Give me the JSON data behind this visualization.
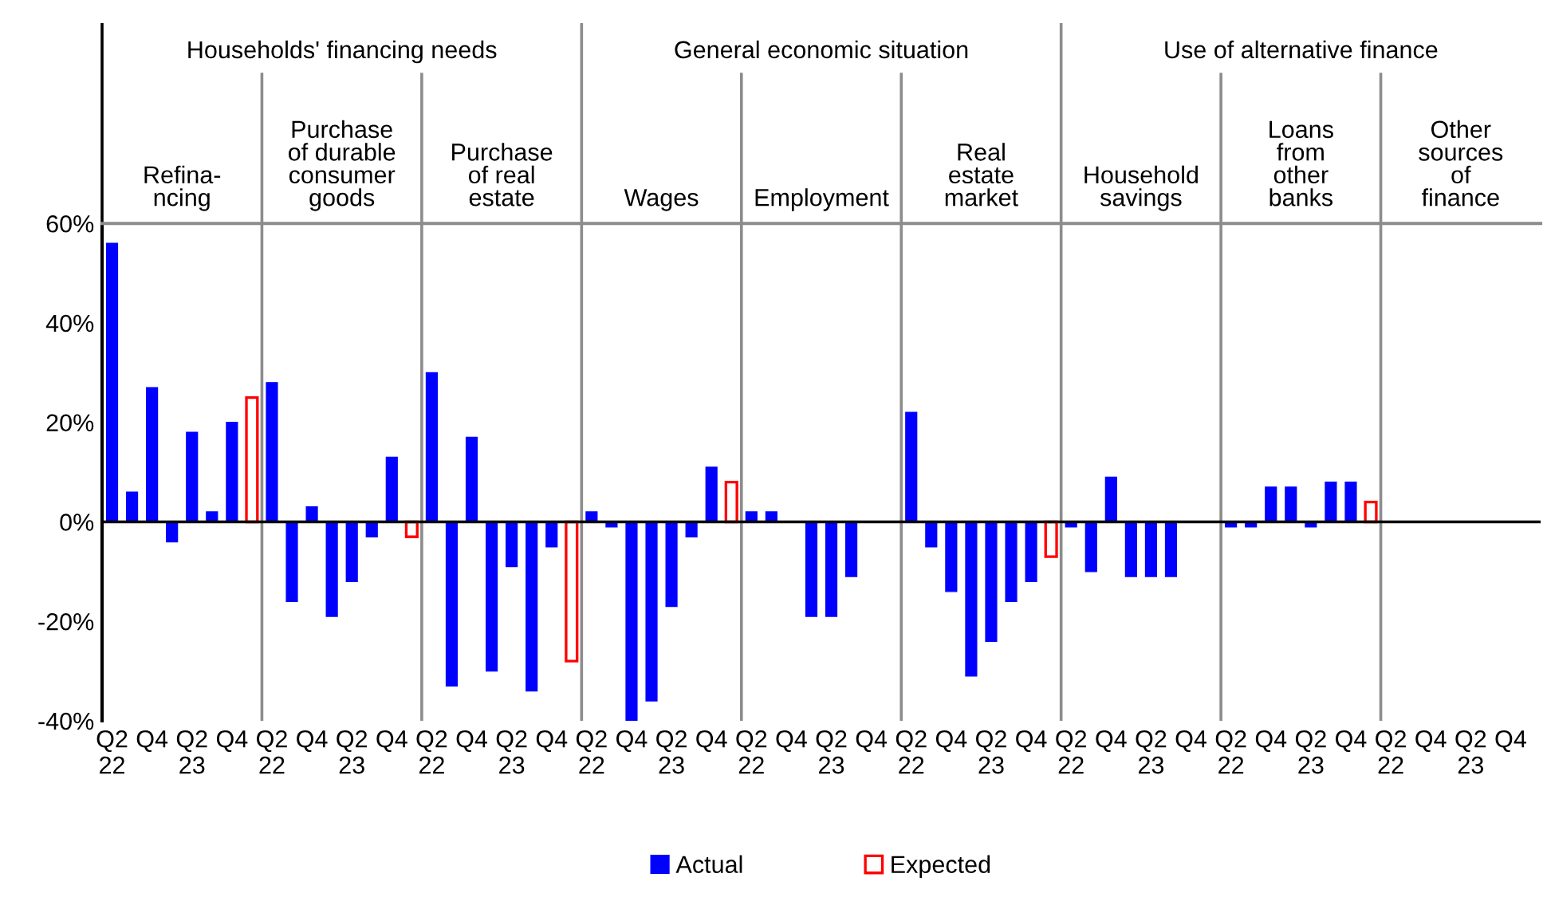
{
  "chart_data": {
    "type": "bar",
    "categories": [
      "Q2\n22",
      null,
      "Q4",
      null,
      "Q2\n23",
      null,
      "Q4",
      null,
      "Q2\n22",
      null,
      "Q4",
      null,
      "Q2\n23",
      null,
      "Q4",
      null,
      "Q2\n22",
      null,
      "Q4",
      null,
      "Q2\n23",
      null,
      "Q4",
      null,
      "Q2\n22",
      null,
      "Q4",
      null,
      "Q2\n23",
      null,
      "Q4",
      null,
      "Q2\n22",
      null,
      "Q4",
      null,
      "Q2\n23",
      null,
      "Q4",
      null,
      "Q2\n22",
      null,
      "Q4",
      null,
      "Q2\n23",
      null,
      "Q4",
      null,
      "Q2\n22",
      null,
      "Q4",
      null,
      "Q2\n23",
      null,
      "Q4",
      null,
      "Q2\n22",
      null,
      "Q4",
      null,
      "Q2\n23",
      null,
      "Q4",
      null,
      "Q2\n22",
      null,
      "Q4",
      null,
      "Q2\n23",
      null,
      "Q4",
      null
    ],
    "series": [
      {
        "name": "Actual",
        "color": "#0000ff",
        "values": [
          56,
          6,
          27,
          -4,
          18,
          2,
          20,
          null,
          28,
          -16,
          3,
          -19,
          -12,
          -3,
          13,
          null,
          30,
          -33,
          17,
          -30,
          -9,
          -34,
          -5,
          null,
          2,
          -1,
          -40,
          -36,
          -17,
          -3,
          11,
          null,
          2,
          2,
          null,
          -19,
          -19,
          -11,
          null,
          null,
          22,
          -5,
          -14,
          -31,
          -24,
          -16,
          -12,
          null,
          -1,
          -10,
          9,
          -11,
          -11,
          -11,
          null,
          null,
          -1,
          -1,
          7,
          7,
          -1,
          8,
          8,
          null,
          null,
          null,
          null,
          null,
          null,
          null,
          null,
          null
        ]
      },
      {
        "name": "Expected",
        "color": "#ff0000",
        "values": [
          null,
          null,
          null,
          null,
          null,
          null,
          null,
          25,
          null,
          null,
          null,
          null,
          null,
          null,
          null,
          -3,
          null,
          null,
          null,
          null,
          null,
          null,
          null,
          -28,
          null,
          null,
          null,
          null,
          null,
          null,
          null,
          8,
          null,
          null,
          null,
          null,
          null,
          null,
          null,
          null,
          null,
          null,
          null,
          null,
          null,
          null,
          null,
          -7,
          null,
          null,
          null,
          null,
          null,
          null,
          null,
          null,
          null,
          null,
          null,
          null,
          null,
          null,
          null,
          4,
          null,
          null,
          null,
          null,
          null,
          null,
          null,
          null
        ]
      }
    ],
    "ylim": [
      -40,
      60
    ],
    "yticks": [
      {
        "value": -40,
        "label": "-40%"
      },
      {
        "value": -20,
        "label": "-20%"
      },
      {
        "value": 0,
        "label": "0%"
      },
      {
        "value": 20,
        "label": "20%"
      },
      {
        "value": 40,
        "label": "40%"
      },
      {
        "value": 60,
        "label": "60%"
      }
    ],
    "grid": false,
    "legend": "bottom",
    "annotations": [
      "Households' financing needs",
      "General economic situation",
      "Use of alternative finance",
      "Refina-\nncing",
      "Purchase\nof durable\nconsumer\ngoods",
      "Purchase\nof real\nestate",
      "Wages",
      "Employment",
      "Real\nestate\nmarket",
      "Household\nsavings",
      "Loans\nfrom\nother\nbanks",
      "Other\nsources\nof\nfinance"
    ]
  }
}
